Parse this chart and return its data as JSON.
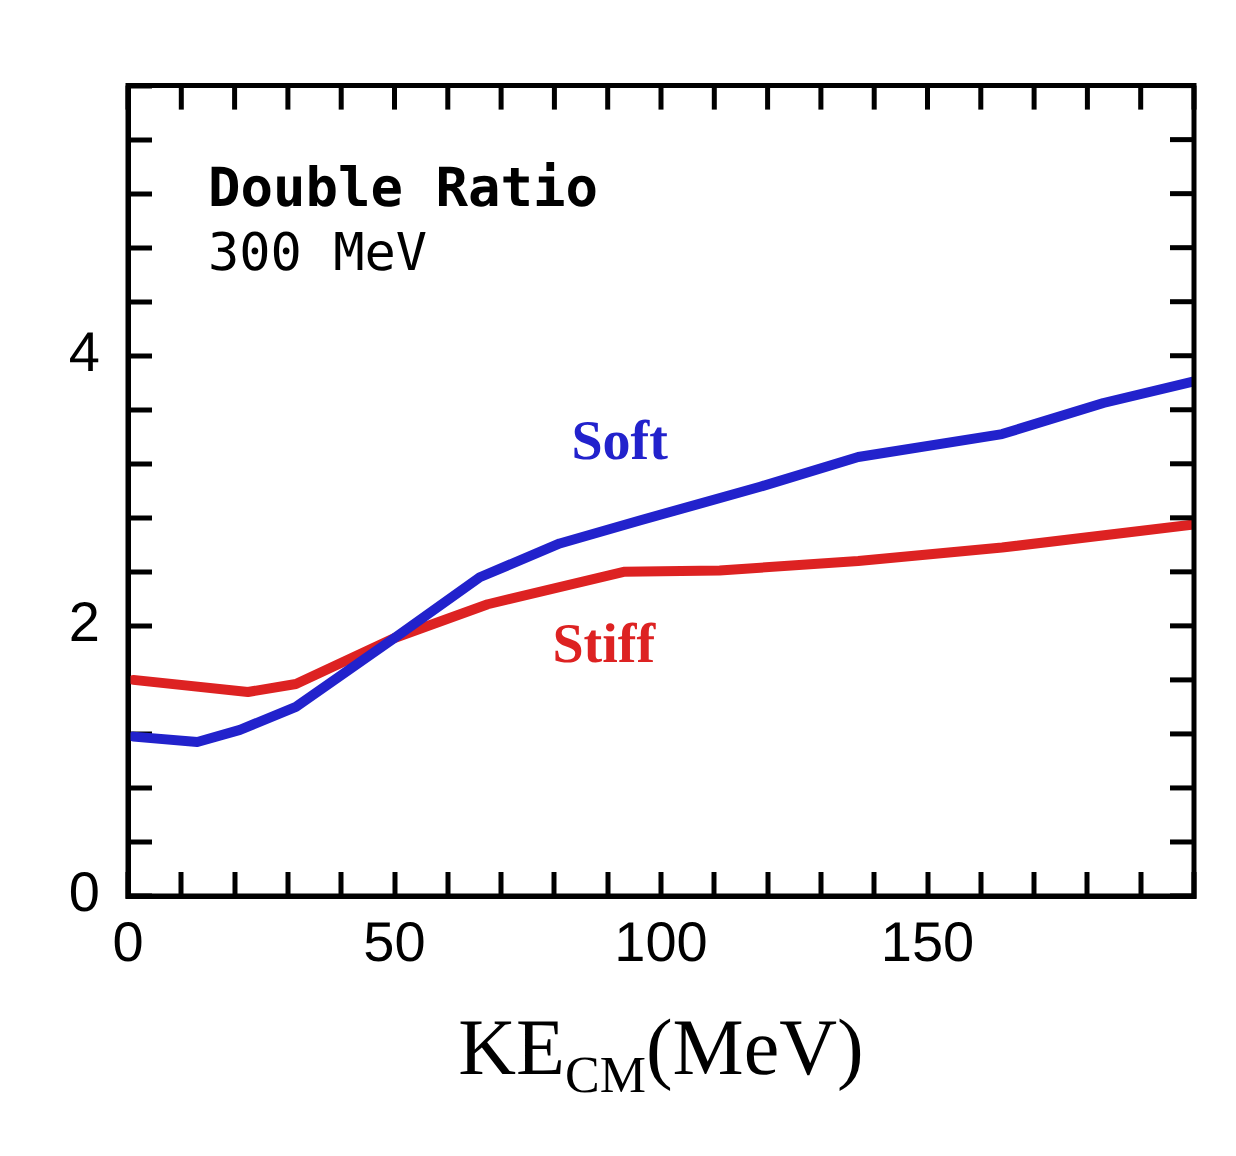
{
  "chart_data": {
    "type": "line",
    "xlabel": "KE$_{CM}$(MeV)",
    "annotations": [
      "Double Ratio",
      "300 MeV"
    ],
    "xlim": [
      0,
      200
    ],
    "ylim": [
      0,
      6
    ],
    "xticks": [
      0,
      {
        "value": 10,
        "label": null
      },
      {
        "value": 20,
        "label": null
      },
      {
        "value": 30,
        "label": null
      },
      {
        "value": 40,
        "label": null
      },
      50,
      {
        "value": 60,
        "label": null
      },
      {
        "value": 70,
        "label": null
      },
      {
        "value": 80,
        "label": null
      },
      {
        "value": 90,
        "label": null
      },
      100,
      {
        "value": 110,
        "label": null
      },
      {
        "value": 120,
        "label": null
      },
      {
        "value": 130,
        "label": null
      },
      {
        "value": 140,
        "label": null
      },
      150,
      {
        "value": 160,
        "label": null
      },
      {
        "value": 170,
        "label": null
      },
      {
        "value": 180,
        "label": null
      },
      {
        "value": 190,
        "label": null
      },
      {
        "value": 200,
        "label": null
      }
    ],
    "yticks": [
      0,
      {
        "value": 0.4,
        "label": null
      },
      {
        "value": 0.8,
        "label": null
      },
      {
        "value": 1.2,
        "label": null
      },
      {
        "value": 1.6,
        "label": null
      },
      2,
      {
        "value": 2.4,
        "label": null
      },
      {
        "value": 2.8,
        "label": null
      },
      {
        "value": 3.2,
        "label": null
      },
      {
        "value": 3.6,
        "label": null
      },
      4,
      {
        "value": 4.4,
        "label": null
      },
      {
        "value": 4.8,
        "label": null
      },
      {
        "value": 5.2,
        "label": null
      },
      {
        "value": 5.6,
        "label": null
      },
      {
        "value": 6,
        "label": null
      }
    ],
    "grid": false,
    "legend": false,
    "marker": "none",
    "line_style": "solid",
    "series": [
      {
        "name": "Soft",
        "color": "#2222cc",
        "x": [
          1,
          13,
          21,
          31.5,
          50,
          66,
          81,
          96,
          118.6,
          137,
          164,
          183,
          200
        ],
        "values": [
          1.18,
          1.14,
          1.23,
          1.4,
          1.91,
          2.36,
          2.61,
          2.78,
          3.03,
          3.25,
          3.42,
          3.65,
          3.81
        ]
      },
      {
        "name": "Stiff",
        "color": "#dd2222",
        "x": [
          1,
          22.5,
          31.5,
          50,
          67.5,
          93,
          111,
          137,
          164,
          200
        ],
        "values": [
          1.6,
          1.51,
          1.57,
          1.91,
          2.16,
          2.4,
          2.41,
          2.48,
          2.58,
          2.75
        ]
      }
    ]
  }
}
